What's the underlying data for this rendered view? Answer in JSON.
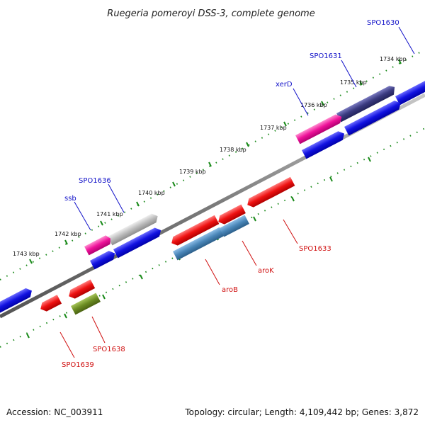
{
  "title": "Ruegeria pomeroyi DSS-3, complete genome",
  "footer": {
    "accession": "Accession: NC_003911",
    "summary": "Topology: circular; Length: 4,109,442 bp; Genes: 3,872"
  },
  "kbp_labels": [
    "1734 kbp",
    "1735 kbp",
    "1736 kbp",
    "1737 kbp",
    "1738 kbp",
    "1739 kbp",
    "1740 kbp",
    "1741 kbp",
    "1742 kbp",
    "1743 kbp"
  ],
  "gene_labels": {
    "spo1630": "SPO1630",
    "spo1631": "SPO1631",
    "xerd": "xerD",
    "spo1636": "SPO1636",
    "ssb": "ssb",
    "spo1633": "SPO1633",
    "arok": "aroK",
    "arob": "aroB",
    "spo1638": "SPO1638",
    "spo1639": "SPO1639"
  },
  "colors": {
    "blue_gene": "#1111e0",
    "red_gene": "#ee1111",
    "pink_gene": "#ee1199",
    "purple_gene": "#3a3a80",
    "gray_gene": "#bbbbbb",
    "steel_gene": "#4a86b8",
    "olive_gene": "#6b8c22",
    "backbone": "#808080",
    "tick": "#1a8a1a",
    "label_blue": "#1010c8",
    "label_red": "#d01010"
  }
}
